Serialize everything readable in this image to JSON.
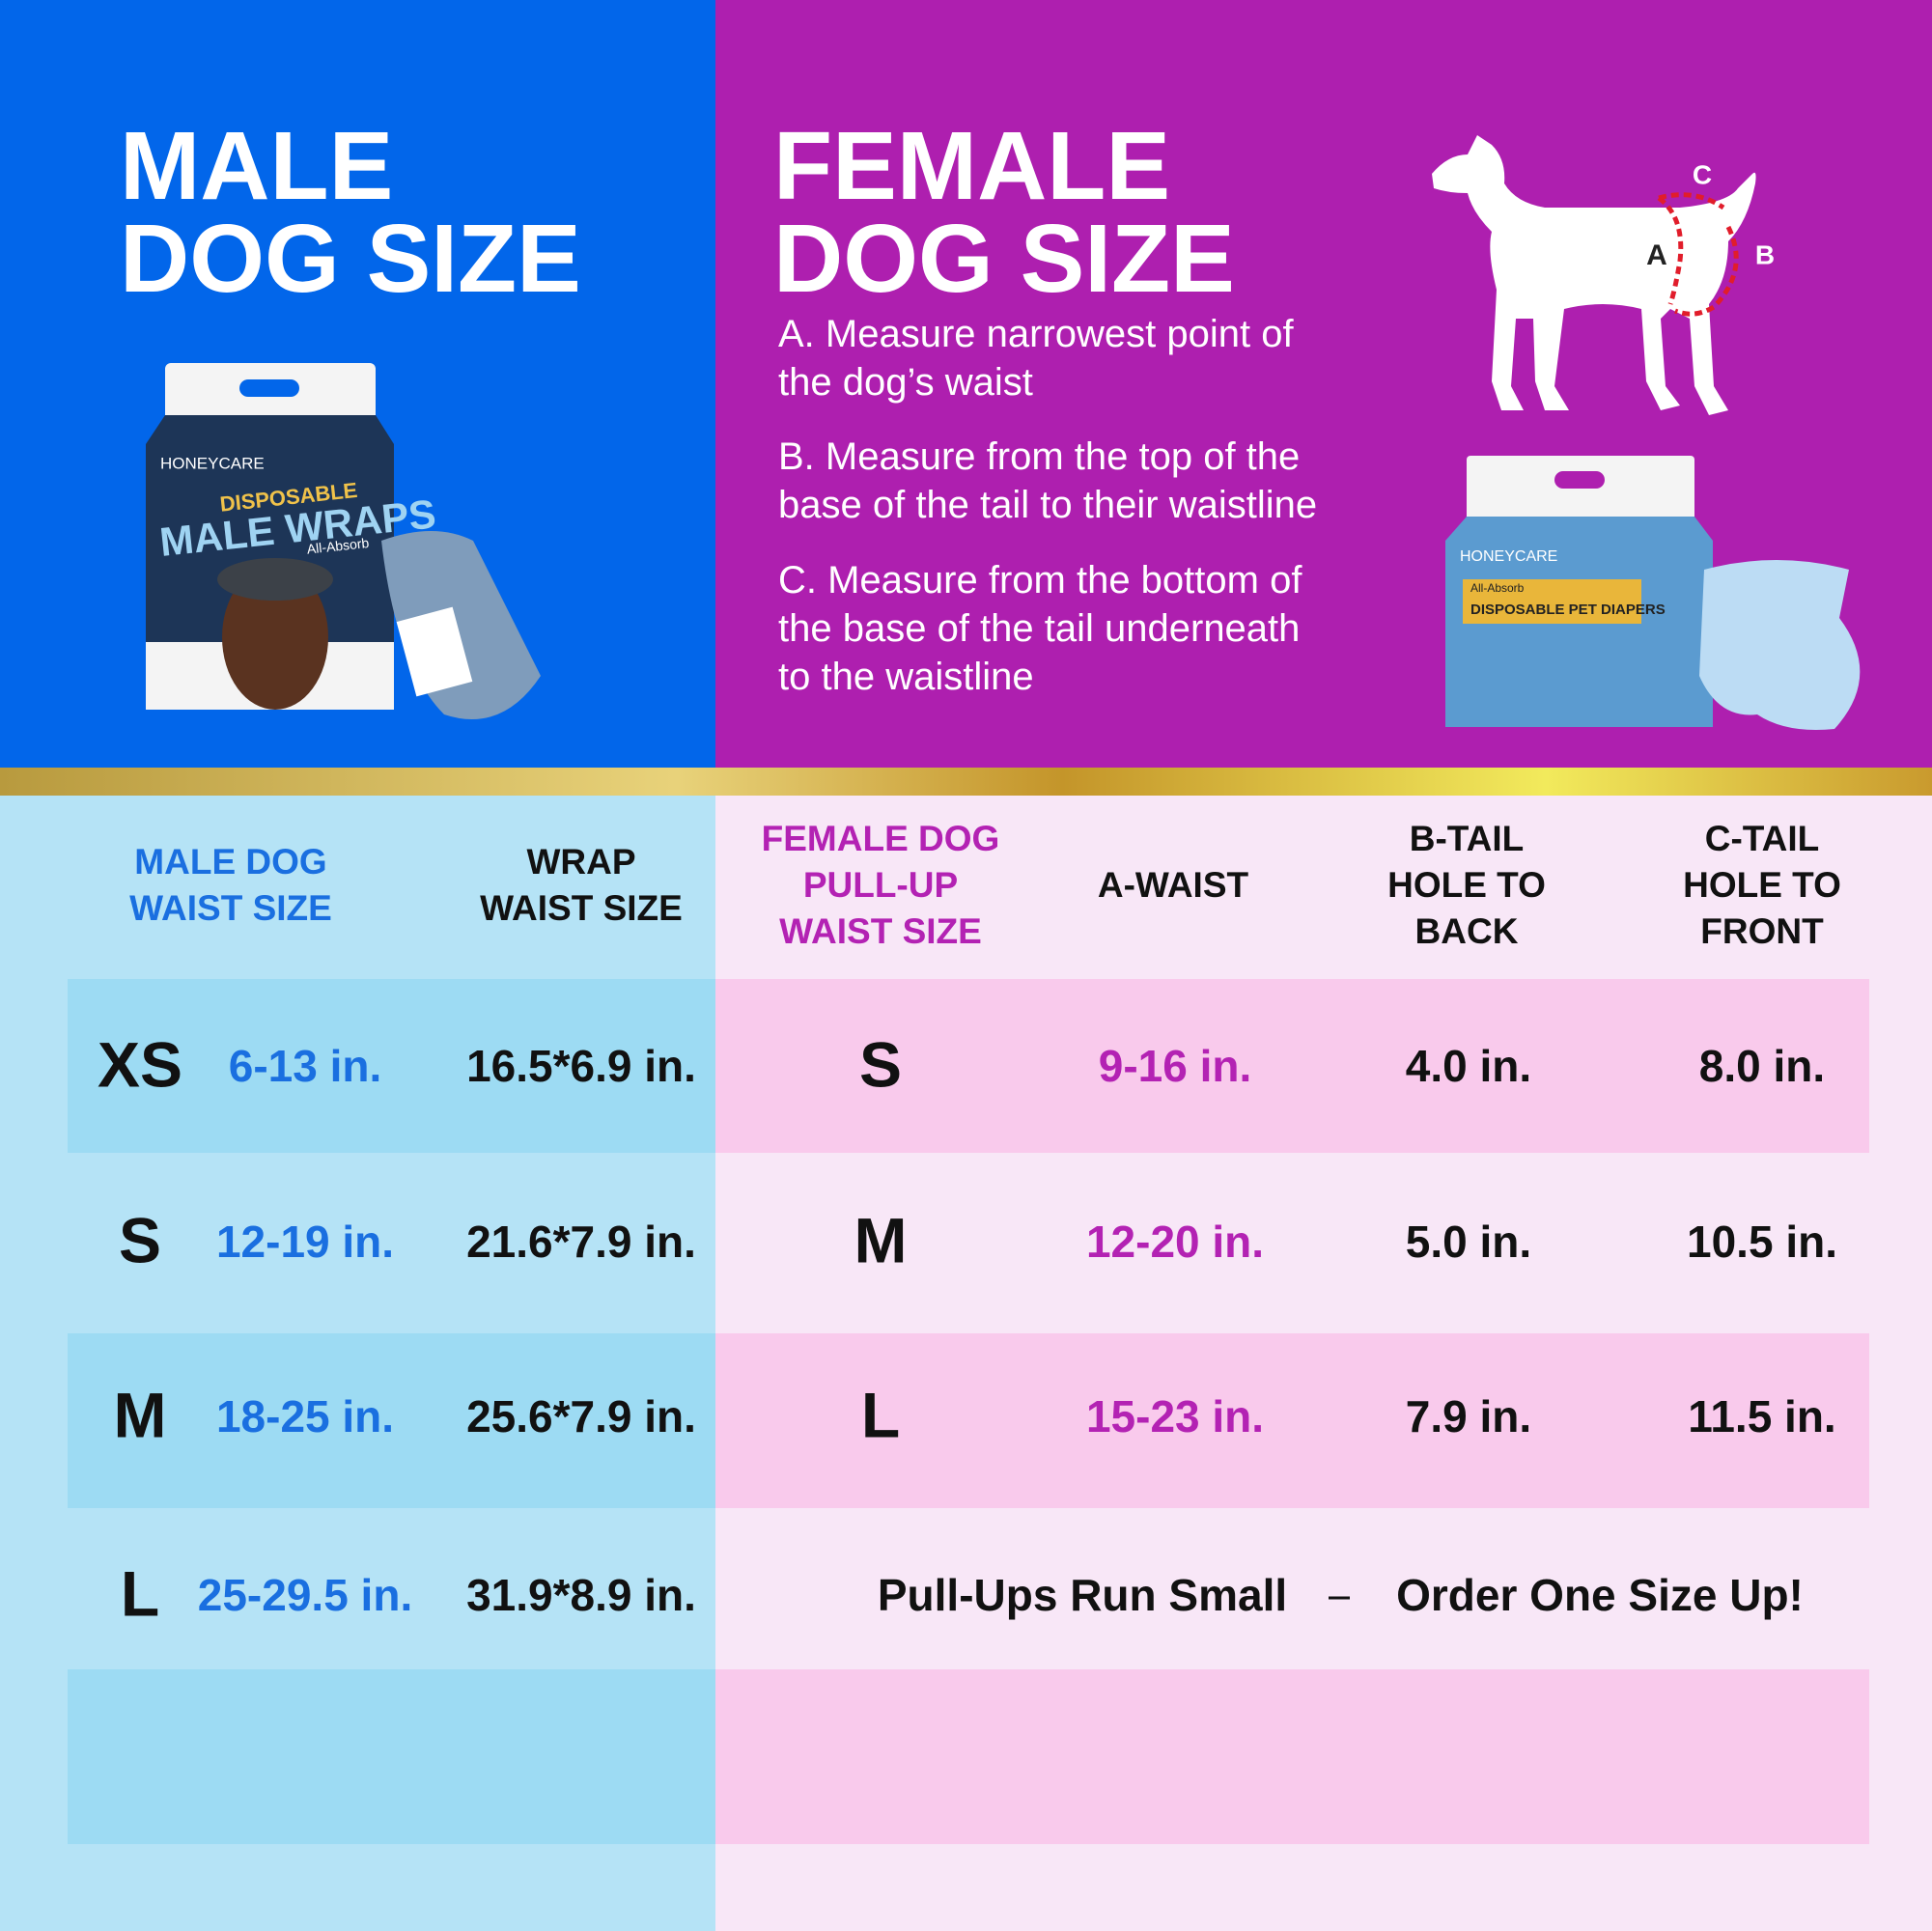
{
  "male_panel": {
    "title_lines": [
      "MALE",
      "DOG SIZE"
    ],
    "package": {
      "brand": "HONEYCARE",
      "line1": "DISPOSABLE",
      "line2": "MALE WRAPS",
      "tag": "All-Absorb"
    }
  },
  "female_panel": {
    "title_lines": [
      "FEMALE",
      "DOG SIZE"
    ],
    "instructions": [
      [
        "A. Measure narrowest point of",
        "the dog’s waist"
      ],
      [
        "B. Measure from the top of the",
        "base of the tail to their waistline"
      ],
      [
        "C. Measure from the bottom of",
        "the base of the tail underneath",
        "to the waistline"
      ]
    ],
    "diagram_labels": [
      "A",
      "B",
      "C"
    ],
    "package": {
      "brand": "HONEYCARE",
      "tag": "All-Absorb",
      "name": "DISPOSABLE PET DIAPERS"
    }
  },
  "table": {
    "male_headers": [
      [
        "MALE DOG",
        "WAIST SIZE"
      ],
      [
        "WRAP",
        "WAIST SIZE"
      ]
    ],
    "female_headers": [
      [
        "FEMALE DOG",
        "PULL-UP",
        "WAIST SIZE"
      ],
      [
        "A-WAIST"
      ],
      [
        "B-TAIL",
        "HOLE TO",
        "BACK"
      ],
      [
        "C-TAIL",
        "HOLE TO",
        "FRONT"
      ]
    ],
    "male_rows": [
      [
        "XS",
        "6-13 in.",
        "16.5*6.9 in."
      ],
      [
        "S",
        "12-19 in.",
        "21.6*7.9 in."
      ],
      [
        "M",
        "18-25 in.",
        "25.6*7.9 in."
      ],
      [
        "L",
        "25-29.5 in.",
        "31.9*8.9 in."
      ]
    ],
    "female_rows": [
      [
        "S",
        "9-16 in.",
        "4.0 in.",
        "8.0 in."
      ],
      [
        "M",
        "12-20 in.",
        "5.0 in.",
        "10.5 in."
      ],
      [
        "L",
        "15-23 in.",
        "7.9 in.",
        "11.5 in."
      ]
    ],
    "note": [
      "Pull-Ups Run Small",
      "Order One Size Up!"
    ]
  }
}
